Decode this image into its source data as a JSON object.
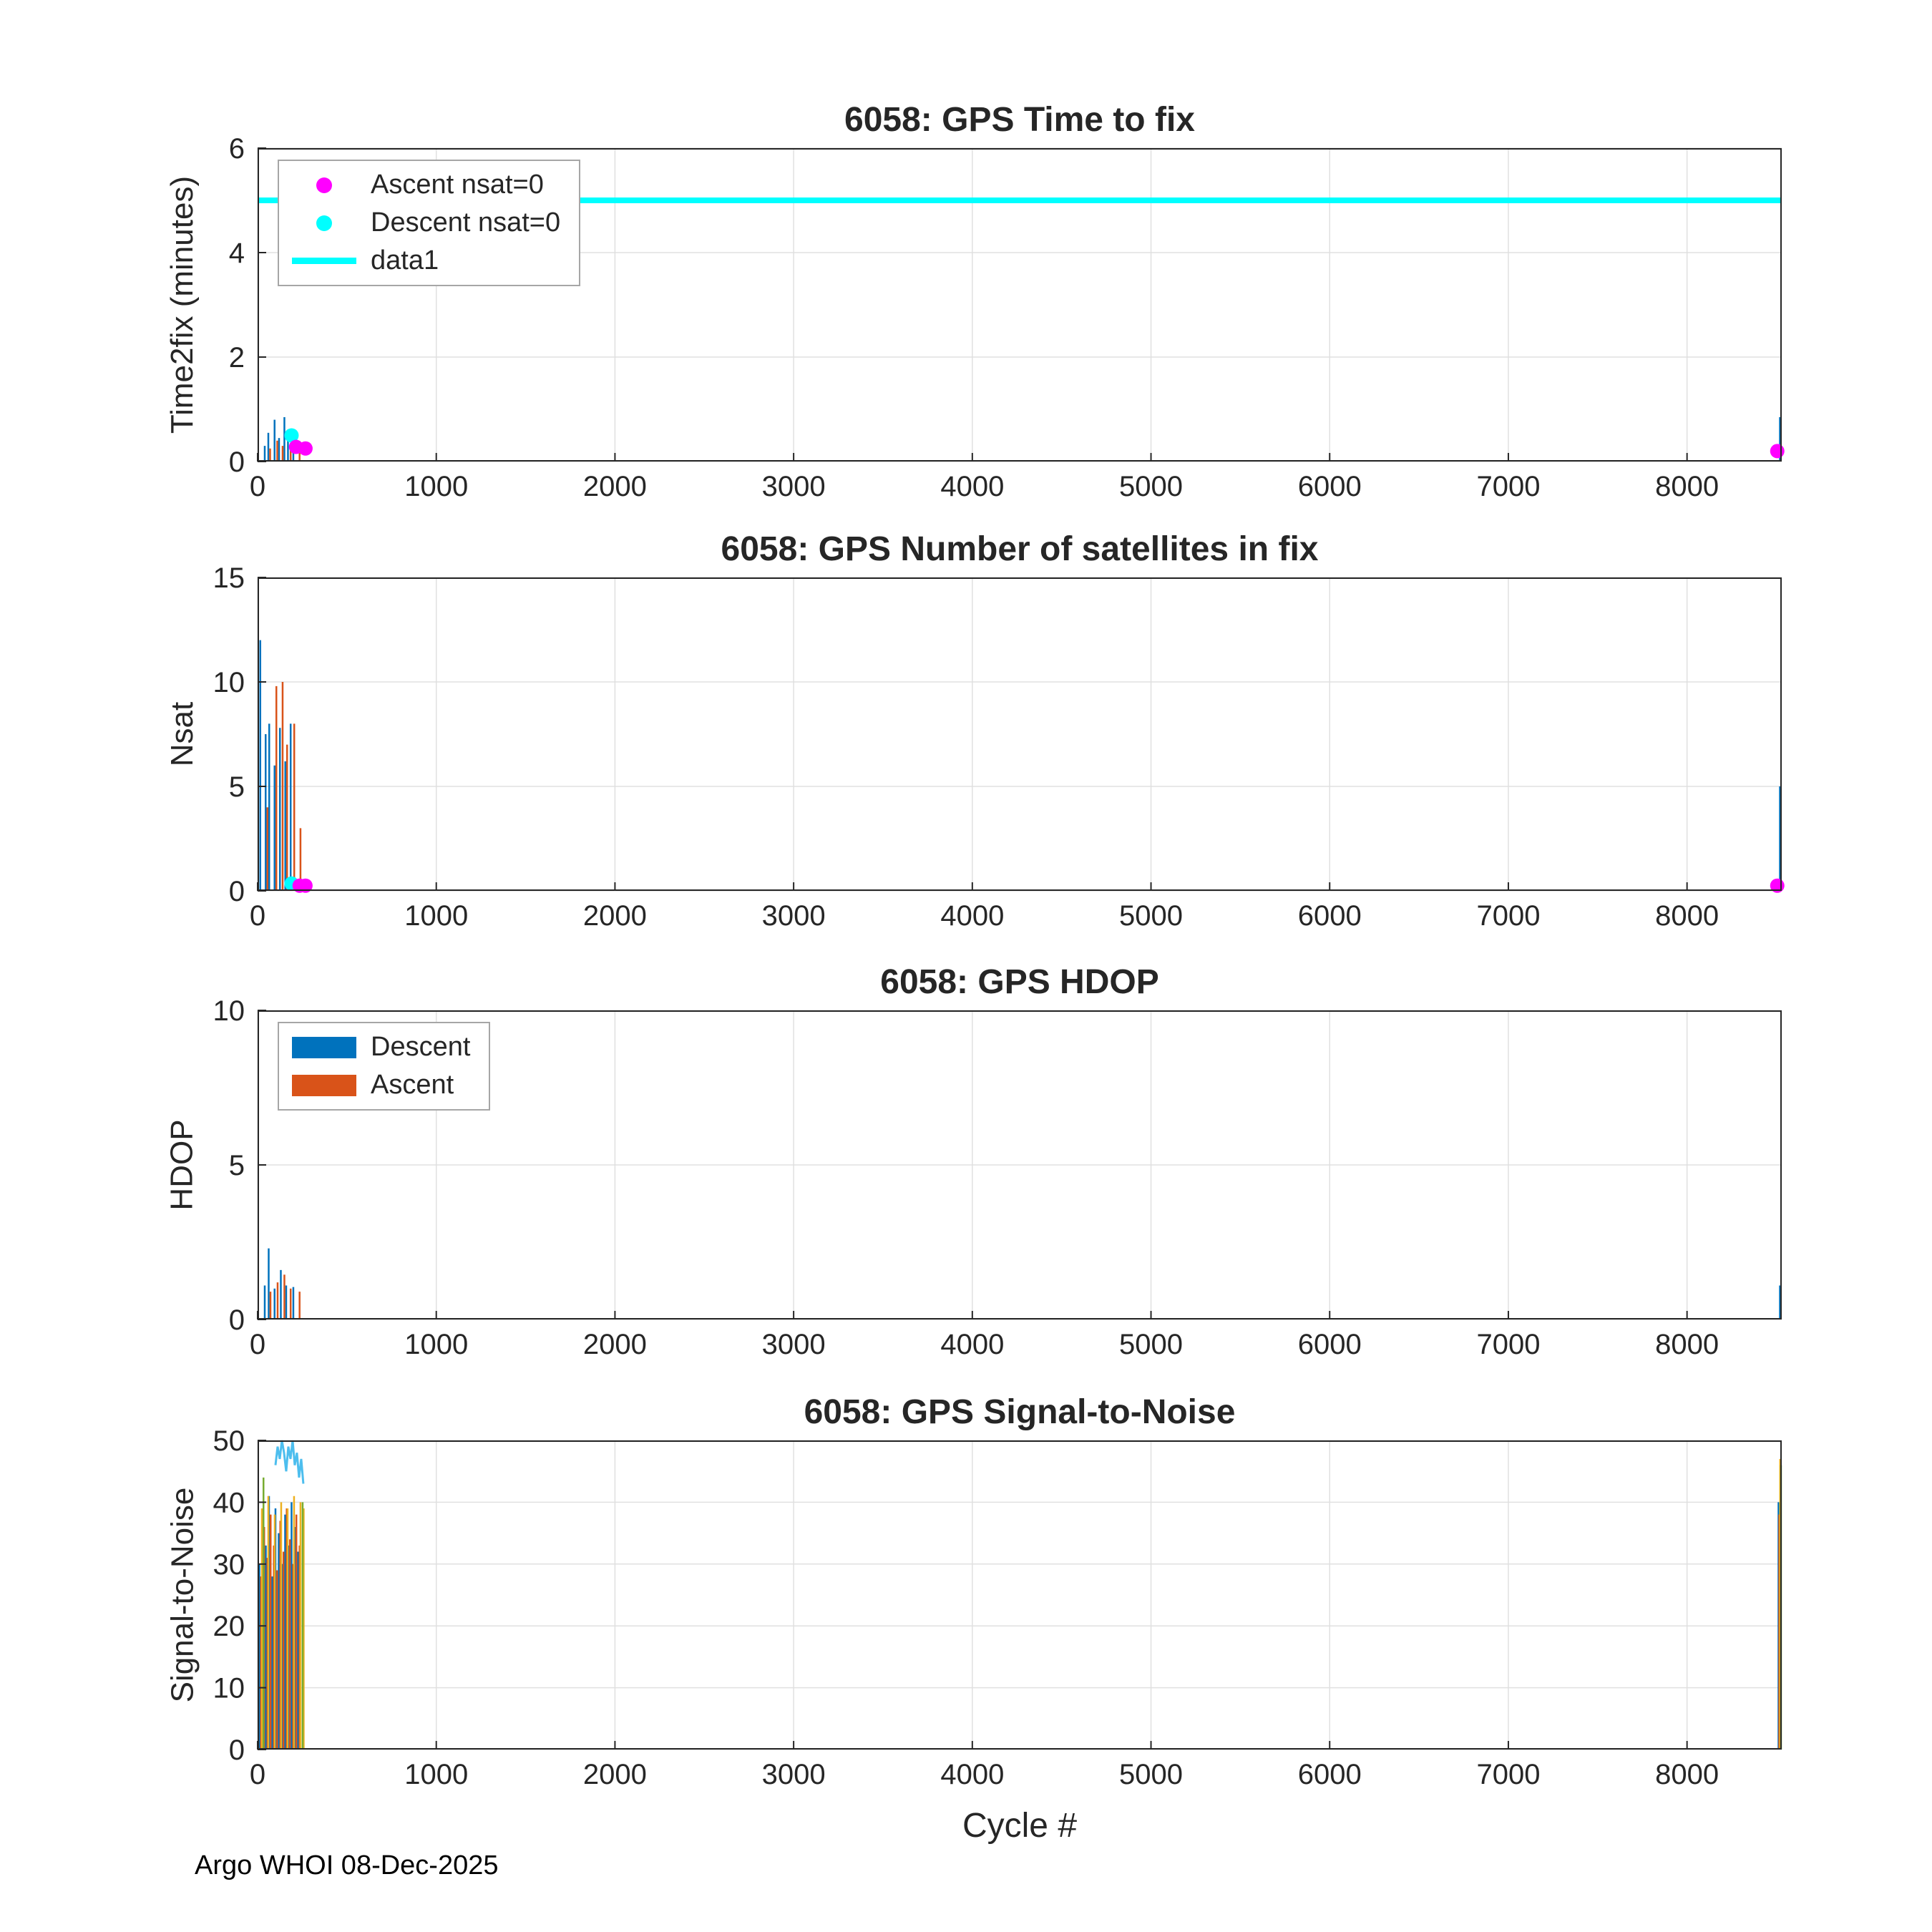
{
  "footer": {
    "text": "Argo WHOI 08-Dec-2025"
  },
  "chart_data": [
    {
      "type": "line",
      "title": "6058: GPS Time to fix",
      "ylabel": "Time2fix (minutes)",
      "xlabel": "",
      "xlim": [
        0,
        8530
      ],
      "ylim": [
        0,
        6
      ],
      "xticks": [
        0,
        1000,
        2000,
        3000,
        4000,
        5000,
        6000,
        7000,
        8000
      ],
      "yticks": [
        0,
        2,
        4,
        6
      ],
      "grid": true,
      "series": [
        {
          "type": "stems",
          "name": "descent-time2fix",
          "color": "#0072BD",
          "width": 2.5,
          "points": [
            [
              40,
              0.3
            ],
            [
              60,
              0.55
            ],
            [
              95,
              0.8
            ],
            [
              120,
              0.45
            ],
            [
              150,
              0.85
            ],
            [
              170,
              0.6
            ],
            [
              200,
              0.5
            ],
            [
              8520,
              0.85
            ]
          ]
        },
        {
          "type": "stems",
          "name": "ascent-time2fix",
          "color": "#D95319",
          "width": 2.5,
          "points": [
            [
              70,
              0.25
            ],
            [
              110,
              0.4
            ],
            [
              140,
              0.3
            ],
            [
              185,
              0.35
            ],
            [
              235,
              0.3
            ]
          ]
        },
        {
          "type": "hline",
          "name": "data1",
          "color": "#00FFFF",
          "width": 8,
          "y": 5
        },
        {
          "type": "scatter",
          "name": "Descent nsat=0",
          "color": "#00FFFF",
          "radius": 10,
          "points": [
            [
              190,
              0.5
            ]
          ]
        },
        {
          "type": "scatter",
          "name": "Ascent nsat=0",
          "color": "#FF00FF",
          "radius": 10,
          "points": [
            [
              215,
              0.28
            ],
            [
              268,
              0.25
            ],
            [
              8505,
              0.2
            ]
          ]
        }
      ],
      "legend": {
        "position": "top-left",
        "entries": [
          {
            "label": "Ascent nsat=0",
            "marker": "dot",
            "color": "#FF00FF"
          },
          {
            "label": "Descent nsat=0",
            "marker": "dot",
            "color": "#00FFFF"
          },
          {
            "label": "data1",
            "marker": "line",
            "color": "#00FFFF"
          }
        ]
      }
    },
    {
      "type": "line",
      "title": "6058: GPS Number of satellites in fix",
      "ylabel": "Nsat",
      "xlabel": "",
      "xlim": [
        0,
        8530
      ],
      "ylim": [
        0,
        15
      ],
      "xticks": [
        0,
        1000,
        2000,
        3000,
        4000,
        5000,
        6000,
        7000,
        8000
      ],
      "yticks": [
        0,
        5,
        10,
        15
      ],
      "grid": true,
      "series": [
        {
          "type": "stems",
          "name": "descent-nsat",
          "color": "#0072BD",
          "width": 2.5,
          "points": [
            [
              15,
              12
            ],
            [
              45,
              7.5
            ],
            [
              65,
              8
            ],
            [
              95,
              6
            ],
            [
              125,
              7.8
            ],
            [
              155,
              6.2
            ],
            [
              185,
              8
            ],
            [
              8520,
              5
            ]
          ]
        },
        {
          "type": "stems",
          "name": "ascent-nsat",
          "color": "#D95319",
          "width": 2.5,
          "points": [
            [
              55,
              4
            ],
            [
              105,
              9.8
            ],
            [
              140,
              10
            ],
            [
              165,
              7
            ],
            [
              205,
              8
            ],
            [
              240,
              3
            ]
          ]
        },
        {
          "type": "scatter",
          "name": "Descent nsat=0",
          "color": "#00FFFF",
          "radius": 10,
          "points": [
            [
              190,
              0.35
            ]
          ]
        },
        {
          "type": "scatter",
          "name": "Ascent nsat=0",
          "color": "#FF00FF",
          "radius": 10,
          "points": [
            [
              235,
              0.25
            ],
            [
              268,
              0.25
            ],
            [
              8505,
              0.25
            ]
          ]
        }
      ],
      "legend": null
    },
    {
      "type": "line",
      "title": "6058: GPS HDOP",
      "ylabel": "HDOP",
      "xlabel": "",
      "xlim": [
        0,
        8530
      ],
      "ylim": [
        0,
        10
      ],
      "xticks": [
        0,
        1000,
        2000,
        3000,
        4000,
        5000,
        6000,
        7000,
        8000
      ],
      "yticks": [
        0,
        5,
        10
      ],
      "grid": true,
      "series": [
        {
          "type": "stems",
          "name": "descent-hdop",
          "color": "#0072BD",
          "width": 2.5,
          "points": [
            [
              40,
              1.1
            ],
            [
              62,
              2.3
            ],
            [
              95,
              1.0
            ],
            [
              130,
              1.6
            ],
            [
              160,
              1.1
            ],
            [
              200,
              1.05
            ],
            [
              8520,
              1.1
            ]
          ]
        },
        {
          "type": "stems",
          "name": "ascent-hdop",
          "color": "#D95319",
          "width": 2.5,
          "points": [
            [
              72,
              0.9
            ],
            [
              112,
              1.2
            ],
            [
              150,
              1.45
            ],
            [
              185,
              1.0
            ],
            [
              235,
              0.9
            ]
          ]
        }
      ],
      "legend": {
        "position": "top-left",
        "entries": [
          {
            "label": "Descent",
            "marker": "patch",
            "color": "#0072BD"
          },
          {
            "label": "Ascent",
            "marker": "patch",
            "color": "#D95319"
          }
        ]
      }
    },
    {
      "type": "line",
      "title": "6058: GPS Signal-to-Noise",
      "ylabel": "Signal-to-Noise",
      "xlabel": "Cycle #",
      "xlim": [
        0,
        8530
      ],
      "ylim": [
        0,
        50
      ],
      "xticks": [
        0,
        1000,
        2000,
        3000,
        4000,
        5000,
        6000,
        7000,
        8000
      ],
      "yticks": [
        0,
        10,
        20,
        30,
        40,
        50
      ],
      "grid": true,
      "series": [
        {
          "type": "stems",
          "name": "snr-series-1",
          "color": "#0072BD",
          "width": 2.5,
          "points": [
            [
              10,
              30
            ],
            [
              28,
              38
            ],
            [
              46,
              33
            ],
            [
              64,
              41
            ],
            [
              82,
              28
            ],
            [
              100,
              39
            ],
            [
              118,
              35
            ],
            [
              136,
              30
            ],
            [
              154,
              38
            ],
            [
              172,
              33
            ],
            [
              190,
              40
            ],
            [
              208,
              36
            ],
            [
              226,
              32
            ],
            [
              8512,
              40
            ]
          ]
        },
        {
          "type": "stems",
          "name": "snr-series-2",
          "color": "#D95319",
          "width": 2.5,
          "points": [
            [
              19,
              28
            ],
            [
              37,
              36
            ],
            [
              55,
              31
            ],
            [
              73,
              38
            ],
            [
              91,
              33
            ],
            [
              109,
              29
            ],
            [
              127,
              37
            ],
            [
              145,
              32
            ],
            [
              163,
              39
            ],
            [
              181,
              34
            ],
            [
              199,
              30
            ],
            [
              217,
              38
            ],
            [
              235,
              33
            ],
            [
              8516,
              38
            ]
          ]
        },
        {
          "type": "stems",
          "name": "snr-series-3",
          "color": "#EDB120",
          "width": 2.5,
          "points": [
            [
              24,
              39
            ],
            [
              60,
              41
            ],
            [
              96,
              38
            ],
            [
              132,
              40
            ],
            [
              168,
              39
            ],
            [
              204,
              41
            ],
            [
              240,
              40
            ],
            [
              258,
              39
            ],
            [
              8521,
              47
            ]
          ]
        },
        {
          "type": "stems",
          "name": "snr-series-4",
          "color": "#77AC30",
          "width": 2.5,
          "points": [
            [
              33,
              44
            ],
            [
              252,
              40
            ],
            [
              8526,
              46
            ]
          ]
        },
        {
          "type": "line",
          "name": "snr-series-5",
          "color": "#4DBEEE",
          "width": 3,
          "points": [
            [
              100,
              46
            ],
            [
              112,
              49
            ],
            [
              124,
              47
            ],
            [
              136,
              50
            ],
            [
              148,
              48
            ],
            [
              160,
              45
            ],
            [
              172,
              49
            ],
            [
              184,
              47
            ],
            [
              196,
              50
            ],
            [
              208,
              46
            ],
            [
              220,
              48
            ],
            [
              232,
              44
            ],
            [
              244,
              47
            ],
            [
              256,
              43
            ]
          ]
        }
      ],
      "legend": null
    }
  ]
}
